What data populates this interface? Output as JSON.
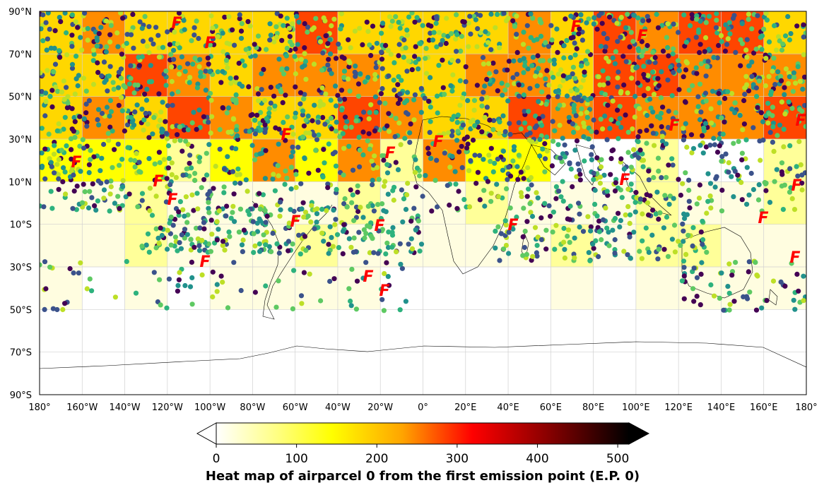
{
  "map": {
    "lat_labels": [
      "90°N",
      "70°N",
      "50°N",
      "30°N",
      "10°N",
      "10°S",
      "30°S",
      "50°S",
      "70°S",
      "90°S"
    ],
    "lon_labels": [
      "180°",
      "160°W",
      "140°W",
      "120°W",
      "100°W",
      "80°W",
      "60°W",
      "40°W",
      "20°W",
      "0°",
      "20°E",
      "40°E",
      "60°E",
      "80°E",
      "100°E",
      "120°E",
      "140°E",
      "160°E",
      "180°"
    ],
    "emission_marker_label": "F",
    "trajectory_colors": [
      "#440154",
      "#3b528b",
      "#21918c",
      "#2db27d",
      "#5ec962",
      "#bddf26"
    ],
    "heat_colors": [
      "#ffffff",
      "#fffde0",
      "#ffff99",
      "#ffff00",
      "#ffd700",
      "#ff8c00",
      "#ff4500",
      "#ff0000",
      "#c00000",
      "#000000"
    ]
  },
  "colorbar": {
    "ticks": [
      "0",
      "100",
      "200",
      "300",
      "400",
      "500"
    ],
    "title": "Heat map of airparcel 0 from the first emission point (E.P. 0)"
  }
}
